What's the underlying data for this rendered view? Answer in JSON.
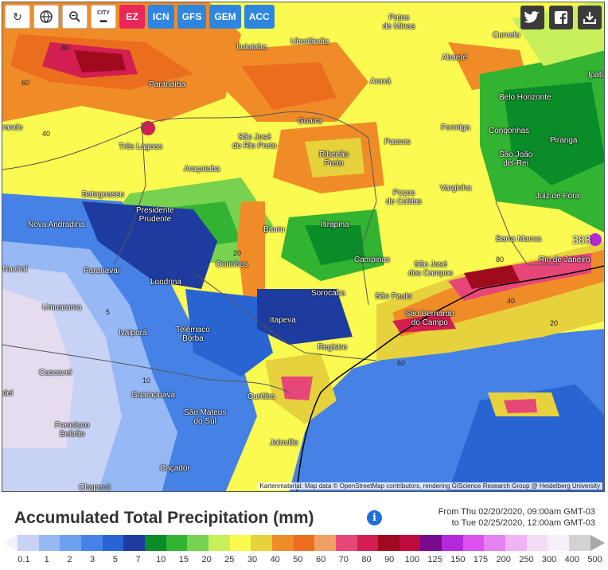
{
  "toolbar": {
    "refresh_icon": "refresh-icon",
    "globe_icon": "globe-icon",
    "zoom_icon": "zoom-out-icon",
    "city_label": "CITY",
    "models": [
      {
        "label": "EZ",
        "color": "#e8285a"
      },
      {
        "label": "ICN",
        "color": "#2f86e0"
      },
      {
        "label": "GFS",
        "color": "#2f86e0"
      },
      {
        "label": "GEM",
        "color": "#2f86e0"
      },
      {
        "label": "ACC",
        "color": "#2f86e0"
      }
    ]
  },
  "social": {
    "twitter_icon": "twitter-icon",
    "facebook_icon": "facebook-icon",
    "download_icon": "download-icon"
  },
  "map": {
    "cities": [
      {
        "name": "Patos de Minas",
        "lines": [
          "Patos",
          "de Minas"
        ]
      },
      {
        "name": "Uberlândia",
        "lines": [
          "Uberlândia"
        ]
      },
      {
        "name": "Curvelo",
        "lines": [
          "Curvelo"
        ]
      },
      {
        "name": "Ituiutaba",
        "lines": [
          "Ituiutaba"
        ]
      },
      {
        "name": "Abaeté",
        "lines": [
          "Abaeté"
        ]
      },
      {
        "name": "Ipati",
        "lines": [
          "Ipati"
        ]
      },
      {
        "name": "Paranaíba",
        "lines": [
          "Paranaíba"
        ]
      },
      {
        "name": "Araxá",
        "lines": [
          "Araxá"
        ]
      },
      {
        "name": "Belo Horizonte",
        "lines": [
          "Belo Horizonte"
        ]
      },
      {
        "name": "Grande",
        "lines": [
          "rande"
        ]
      },
      {
        "name": "Guaíra",
        "lines": [
          "Guaíra"
        ]
      },
      {
        "name": "Formiga",
        "lines": [
          "Formiga"
        ]
      },
      {
        "name": "Congonhas",
        "lines": [
          "Congonhas"
        ]
      },
      {
        "name": "São José do Rio Preto",
        "lines": [
          "São José",
          "do Rio Preto"
        ]
      },
      {
        "name": "Três Lagoas",
        "lines": [
          "Três Lagoas"
        ]
      },
      {
        "name": "Passos",
        "lines": [
          "Passos"
        ]
      },
      {
        "name": "Piranga",
        "lines": [
          "Piranga"
        ]
      },
      {
        "name": "Ribeirão Preto",
        "lines": [
          "Ribeirão",
          "Preto"
        ]
      },
      {
        "name": "São João del-Rei",
        "lines": [
          "São João",
          "del-Rei"
        ]
      },
      {
        "name": "Araçatuba",
        "lines": [
          "Araçatuba"
        ]
      },
      {
        "name": "Varginha",
        "lines": [
          "Varginha"
        ]
      },
      {
        "name": "Bataguassu",
        "lines": [
          "Bataguassu"
        ]
      },
      {
        "name": "Poços de Caldas",
        "lines": [
          "Poços",
          "de Caldas"
        ]
      },
      {
        "name": "Juiz de Fora",
        "lines": [
          "Juiz de Fora"
        ]
      },
      {
        "name": "Presidente Prudente",
        "lines": [
          "Presidente",
          "Prudente"
        ]
      },
      {
        "name": "Nova Andradina",
        "lines": [
          "Nova Andradina"
        ]
      },
      {
        "name": "Bauru",
        "lines": [
          "Bauru"
        ]
      },
      {
        "name": "Itirapina",
        "lines": [
          "Itirapina"
        ]
      },
      {
        "name": "Barra Mansa",
        "lines": [
          "Barra Mansa"
        ]
      },
      {
        "name": "Rio de Janeiro",
        "lines": [
          "Rio de Janeiro"
        ]
      },
      {
        "name": "Naviraí",
        "lines": [
          "Naviraí"
        ]
      },
      {
        "name": "Paranavaí",
        "lines": [
          "Paranavaí"
        ]
      },
      {
        "name": "Ourinhos",
        "lines": [
          "Ourinhos"
        ]
      },
      {
        "name": "Campinas",
        "lines": [
          "Campinas"
        ]
      },
      {
        "name": "São José dos Campos",
        "lines": [
          "São José",
          "dos Campos"
        ]
      },
      {
        "name": "Londrina",
        "lines": [
          "Londrina"
        ]
      },
      {
        "name": "Sorocaba",
        "lines": [
          "Sorocaba"
        ]
      },
      {
        "name": "São Paulo",
        "lines": [
          "São Paulo"
        ]
      },
      {
        "name": "Umuarama",
        "lines": [
          "Umuarama"
        ]
      },
      {
        "name": "São Bernardo do Campo",
        "lines": [
          "São Bernardo",
          "do Campo"
        ]
      },
      {
        "name": "Ivaiporã",
        "lines": [
          "Ivaiporã"
        ]
      },
      {
        "name": "Itapeva",
        "lines": [
          "Itapeva"
        ]
      },
      {
        "name": "Telêmaco Borba",
        "lines": [
          "Telêmaco",
          "Borba"
        ]
      },
      {
        "name": "Registro",
        "lines": [
          "Registro"
        ]
      },
      {
        "name": "Cascavel",
        "lines": [
          "Cascavel"
        ]
      },
      {
        "name": "del",
        "lines": [
          "del"
        ]
      },
      {
        "name": "Guarapuava",
        "lines": [
          "Guarapuava"
        ]
      },
      {
        "name": "Curitiba",
        "lines": [
          "Curitiba"
        ]
      },
      {
        "name": "Francisco Beltrão",
        "lines": [
          "Francisco",
          "Beltrão"
        ]
      },
      {
        "name": "São Mateus do Sul",
        "lines": [
          "São Mateus",
          "do Sul"
        ]
      },
      {
        "name": "Joinville",
        "lines": [
          "Joinville"
        ]
      },
      {
        "name": "Caçador",
        "lines": [
          "Caçador"
        ]
      },
      {
        "name": "Chapecó",
        "lines": [
          "Chapecó"
        ]
      }
    ],
    "peak_value": "383",
    "contour_labels": [
      "80",
      "60",
      "40",
      "20",
      "10",
      "5"
    ],
    "attribution": "Kartenmaterial: Map data © OpenStreetMap contributors, rendering GIScience Research Group @ Heidelberg University"
  },
  "footer": {
    "title": "Accumulated Total Precipitation (mm)",
    "info_icon": "info-icon",
    "period_from": "From Thu 02/20/2020, 09:00am GMT-03",
    "period_to": "to Tue 02/25/2020, 12:00am GMT-03"
  },
  "legend": {
    "colors": [
      "#e6dcf0",
      "#c8d2f5",
      "#96b9f5",
      "#6ea0f0",
      "#4682e6",
      "#2864d2",
      "#1e3ca0",
      "#0a8c28",
      "#32b432",
      "#78d250",
      "#c8f05a",
      "#fafa50",
      "#e6d23c",
      "#f08c28",
      "#eb6e1e",
      "#f0a064",
      "#e64678",
      "#d21e50",
      "#a00a1e",
      "#be0a3c",
      "#780a8c",
      "#b428dc",
      "#dc50f0",
      "#e682f0",
      "#f0b4f5",
      "#f5dcf5",
      "#f5f0fa",
      "#d2d2d2"
    ],
    "ticks": [
      "0.1",
      "1",
      "2",
      "3",
      "5",
      "7",
      "10",
      "15",
      "20",
      "25",
      "30",
      "40",
      "50",
      "60",
      "70",
      "80",
      "90",
      "100",
      "125",
      "150",
      "175",
      "200",
      "250",
      "300",
      "400",
      "500"
    ]
  }
}
